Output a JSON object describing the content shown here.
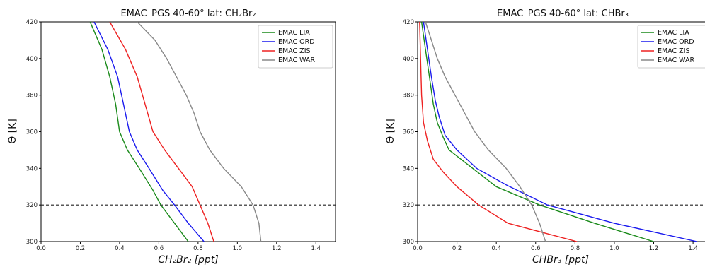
{
  "chart_data": [
    {
      "type": "line",
      "title": "EMAC_PGS 40-60° lat: CH₂Br₂",
      "xlabel": "CH₂Br₂ [ppt]",
      "ylabel": "Θ [K]",
      "xlim": [
        0.0,
        1.5
      ],
      "ylim": [
        300,
        420
      ],
      "xticks": [
        "0.0",
        "0.2",
        "0.4",
        "0.6",
        "0.8",
        "1.0",
        "1.2",
        "1.4"
      ],
      "yticks": [
        "300",
        "320",
        "340",
        "360",
        "380",
        "400",
        "420"
      ],
      "legend_position": "top-right",
      "reference_line": {
        "y": 320,
        "style": "dashed"
      },
      "series": [
        {
          "name": "EMAC LIA",
          "color": "#1a8a1a",
          "points": [
            [
              0.25,
              420
            ],
            [
              0.31,
              405
            ],
            [
              0.35,
              390
            ],
            [
              0.38,
              375
            ],
            [
              0.4,
              360
            ],
            [
              0.44,
              350
            ],
            [
              0.5,
              340
            ],
            [
              0.57,
              328
            ],
            [
              0.61,
              320
            ],
            [
              0.68,
              310
            ],
            [
              0.75,
              300
            ]
          ]
        },
        {
          "name": "EMAC ORD",
          "color": "#1a1aee",
          "points": [
            [
              0.27,
              420
            ],
            [
              0.34,
              405
            ],
            [
              0.39,
              390
            ],
            [
              0.42,
              375
            ],
            [
              0.45,
              360
            ],
            [
              0.49,
              350
            ],
            [
              0.55,
              340
            ],
            [
              0.62,
              328
            ],
            [
              0.68,
              320
            ],
            [
              0.75,
              310
            ],
            [
              0.83,
              300
            ]
          ]
        },
        {
          "name": "EMAC ZIS",
          "color": "#ee2222",
          "points": [
            [
              0.35,
              420
            ],
            [
              0.43,
              405
            ],
            [
              0.49,
              390
            ],
            [
              0.53,
              375
            ],
            [
              0.57,
              360
            ],
            [
              0.63,
              350
            ],
            [
              0.7,
              340
            ],
            [
              0.77,
              330
            ],
            [
              0.81,
              320
            ],
            [
              0.85,
              310
            ],
            [
              0.88,
              300
            ]
          ]
        },
        {
          "name": "EMAC WAR",
          "color": "#888888",
          "points": [
            [
              0.49,
              420
            ],
            [
              0.58,
              410
            ],
            [
              0.64,
              400
            ],
            [
              0.69,
              390
            ],
            [
              0.74,
              380
            ],
            [
              0.78,
              370
            ],
            [
              0.81,
              360
            ],
            [
              0.86,
              350
            ],
            [
              0.93,
              340
            ],
            [
              1.02,
              330
            ],
            [
              1.08,
              320
            ],
            [
              1.11,
              310
            ],
            [
              1.12,
              300
            ]
          ]
        }
      ]
    },
    {
      "type": "line",
      "title": "EMAC_PGS 40-60° lat: CHBr₃",
      "xlabel": "CHBr₃ [ppt]",
      "ylabel": "Θ [K]",
      "xlim": [
        0.0,
        1.45
      ],
      "ylim": [
        300,
        420
      ],
      "xticks": [
        "0.0",
        "0.2",
        "0.4",
        "0.6",
        "0.8",
        "1.0",
        "1.2",
        "1.4"
      ],
      "yticks": [
        "300",
        "320",
        "340",
        "360",
        "380",
        "400",
        "420"
      ],
      "legend_position": "top-right",
      "reference_line": {
        "y": 320,
        "style": "dashed"
      },
      "series": [
        {
          "name": "EMAC LIA",
          "color": "#1a8a1a",
          "points": [
            [
              0.02,
              420
            ],
            [
              0.04,
              405
            ],
            [
              0.06,
              390
            ],
            [
              0.08,
              375
            ],
            [
              0.1,
              365
            ],
            [
              0.13,
              357
            ],
            [
              0.16,
              350
            ],
            [
              0.28,
              340
            ],
            [
              0.4,
              330
            ],
            [
              0.62,
              320
            ],
            [
              0.9,
              310
            ],
            [
              1.2,
              300
            ]
          ]
        },
        {
          "name": "EMAC ORD",
          "color": "#1a1aee",
          "points": [
            [
              0.03,
              420
            ],
            [
              0.05,
              405
            ],
            [
              0.07,
              390
            ],
            [
              0.09,
              377
            ],
            [
              0.11,
              368
            ],
            [
              0.14,
              358
            ],
            [
              0.2,
              350
            ],
            [
              0.3,
              340
            ],
            [
              0.45,
              331
            ],
            [
              0.66,
              320
            ],
            [
              1.0,
              310
            ],
            [
              1.42,
              300
            ]
          ]
        },
        {
          "name": "EMAC ZIS",
          "color": "#ee2222",
          "points": [
            [
              0.01,
              420
            ],
            [
              0.015,
              400
            ],
            [
              0.02,
              380
            ],
            [
              0.03,
              365
            ],
            [
              0.05,
              355
            ],
            [
              0.08,
              345
            ],
            [
              0.13,
              338
            ],
            [
              0.2,
              330
            ],
            [
              0.31,
              320
            ],
            [
              0.46,
              310
            ],
            [
              0.81,
              300
            ]
          ]
        },
        {
          "name": "EMAC WAR",
          "color": "#888888",
          "points": [
            [
              0.04,
              420
            ],
            [
              0.07,
              410
            ],
            [
              0.1,
              400
            ],
            [
              0.14,
              390
            ],
            [
              0.19,
              380
            ],
            [
              0.24,
              370
            ],
            [
              0.29,
              360
            ],
            [
              0.36,
              350
            ],
            [
              0.45,
              340
            ],
            [
              0.52,
              330
            ],
            [
              0.58,
              320
            ],
            [
              0.62,
              310
            ],
            [
              0.65,
              300
            ]
          ]
        }
      ]
    }
  ]
}
